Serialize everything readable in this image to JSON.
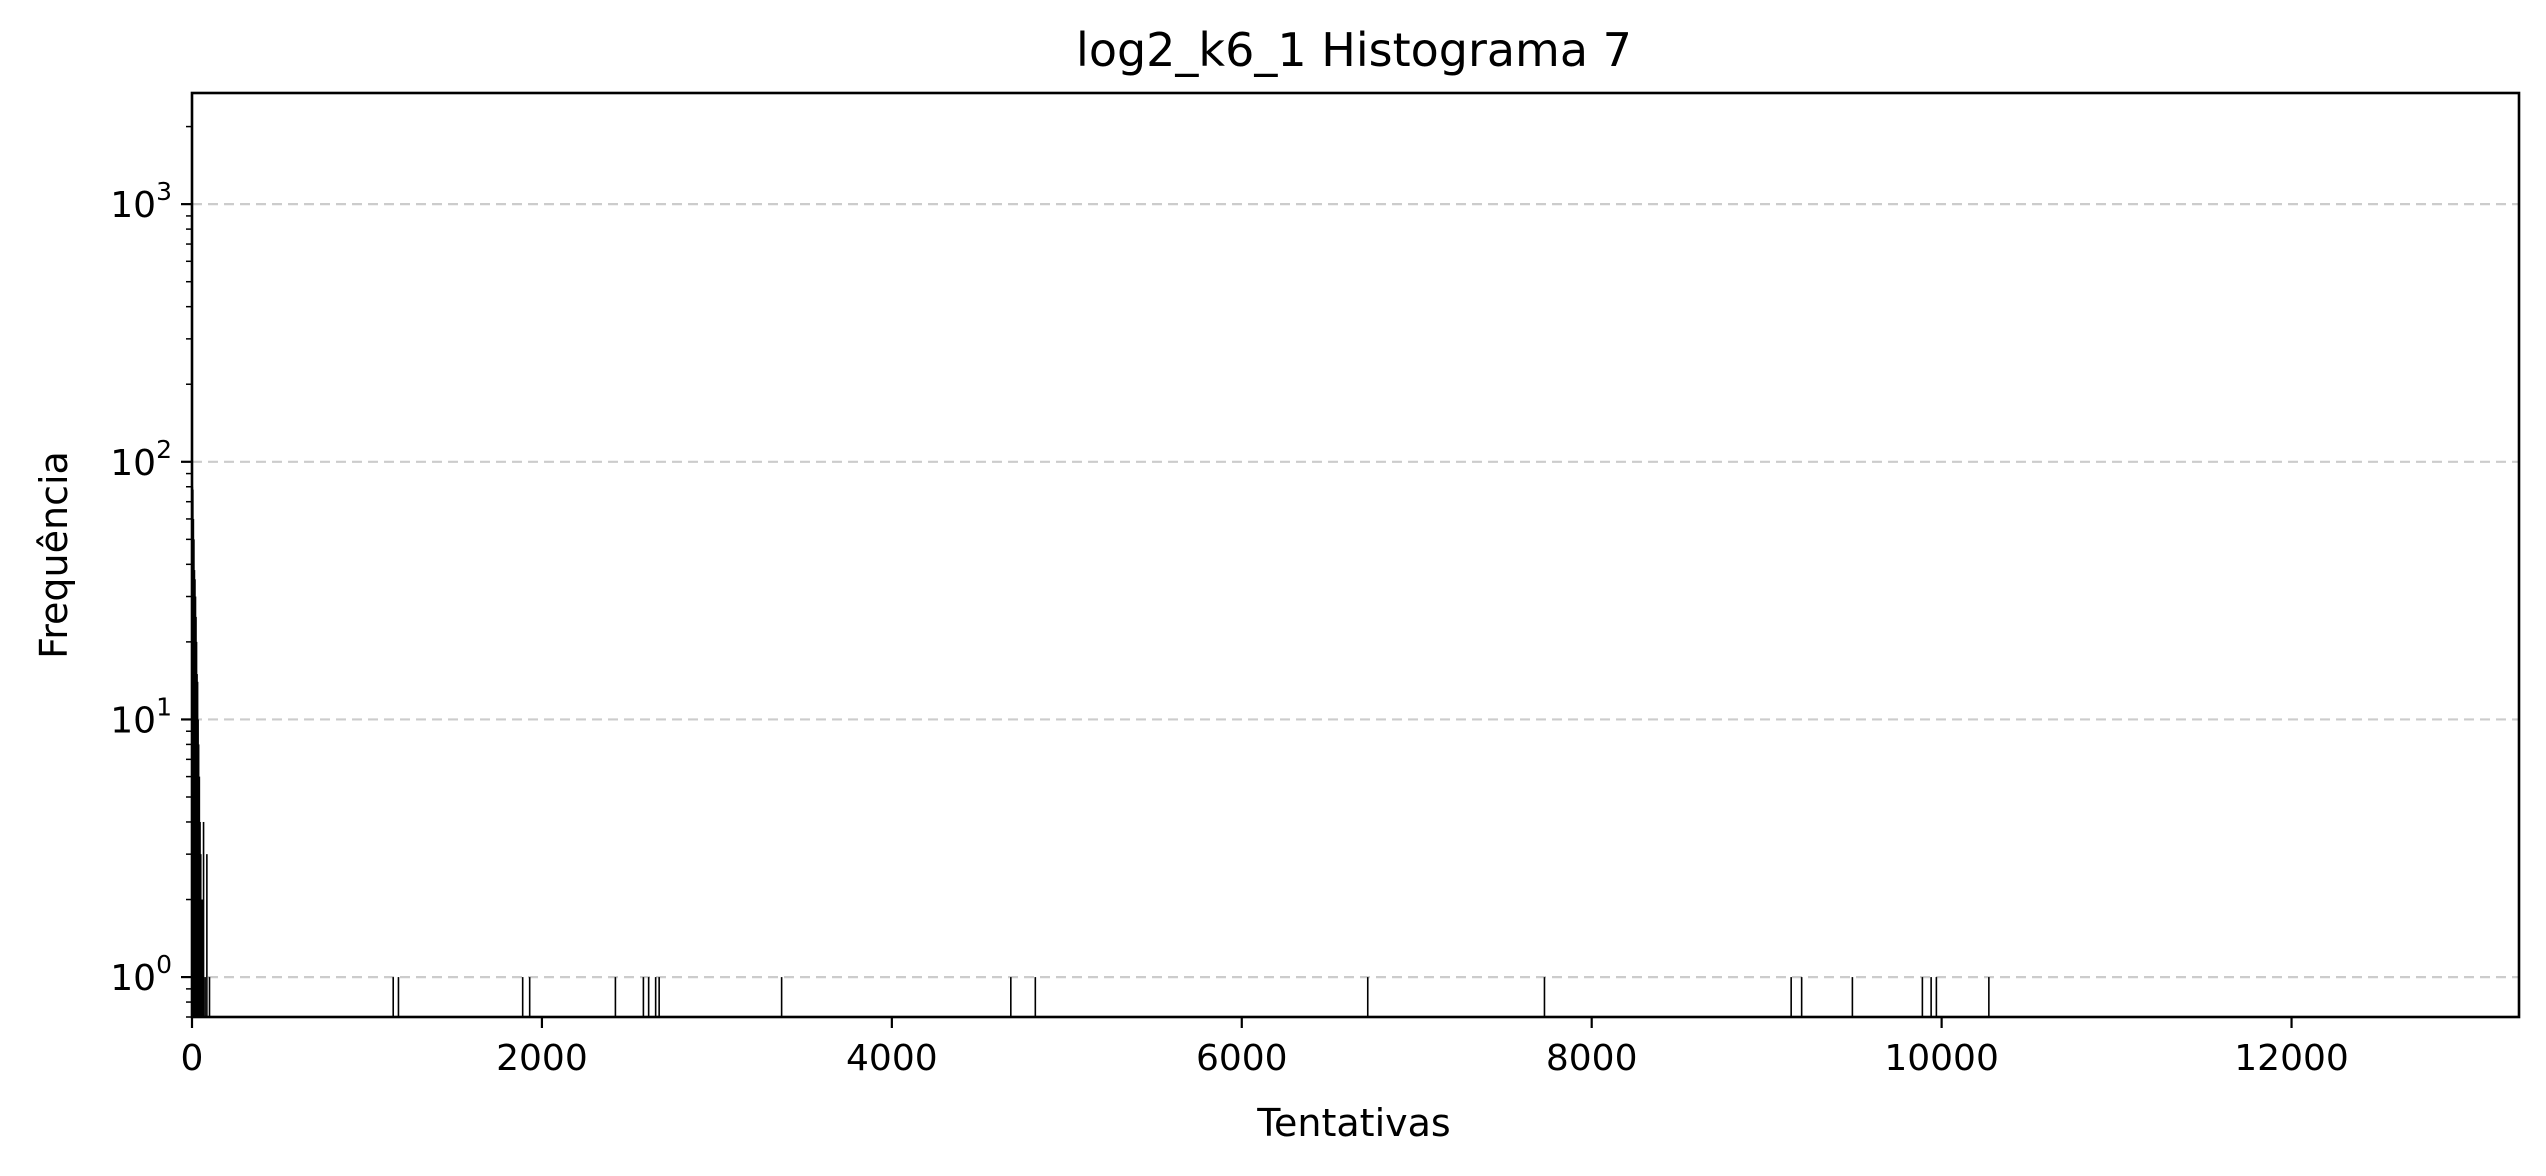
{
  "chart_data": {
    "type": "bar",
    "title": "log2_k6_1 Histograma 7",
    "xlabel": "Tentativas",
    "ylabel": "Frequência",
    "xlim": [
      0,
      13300
    ],
    "ylim": [
      0.7,
      2700
    ],
    "yscale": "log",
    "grid": "y-dashed",
    "colors": {
      "bar": "#000000",
      "grid": "#cccccc"
    },
    "x_ticks": [
      {
        "value": 0,
        "label": "0"
      },
      {
        "value": 2000,
        "label": "2000"
      },
      {
        "value": 4000,
        "label": "4000"
      },
      {
        "value": 6000,
        "label": "6000"
      },
      {
        "value": 8000,
        "label": "8000"
      },
      {
        "value": 10000,
        "label": "10000"
      },
      {
        "value": 12000,
        "label": "12000"
      }
    ],
    "y_ticks": [
      {
        "value": 1,
        "base": "10",
        "exp": "0"
      },
      {
        "value": 10,
        "base": "10",
        "exp": "1"
      },
      {
        "value": 100,
        "base": "10",
        "exp": "2"
      },
      {
        "value": 1000,
        "base": "10",
        "exp": "3"
      }
    ],
    "bins": [
      {
        "x": 2,
        "y": 80
      },
      {
        "x": 5,
        "y": 78
      },
      {
        "x": 8,
        "y": 60
      },
      {
        "x": 11,
        "y": 50
      },
      {
        "x": 14,
        "y": 38
      },
      {
        "x": 17,
        "y": 35
      },
      {
        "x": 20,
        "y": 30
      },
      {
        "x": 23,
        "y": 25
      },
      {
        "x": 26,
        "y": 20
      },
      {
        "x": 29,
        "y": 15
      },
      {
        "x": 32,
        "y": 14
      },
      {
        "x": 35,
        "y": 10
      },
      {
        "x": 38,
        "y": 8
      },
      {
        "x": 42,
        "y": 6
      },
      {
        "x": 46,
        "y": 4
      },
      {
        "x": 50,
        "y": 3
      },
      {
        "x": 55,
        "y": 2
      },
      {
        "x": 60,
        "y": 2
      },
      {
        "x": 66,
        "y": 4
      },
      {
        "x": 75,
        "y": 1
      },
      {
        "x": 85,
        "y": 3
      },
      {
        "x": 100,
        "y": 1
      },
      {
        "x": 1150,
        "y": 1
      },
      {
        "x": 1180,
        "y": 1
      },
      {
        "x": 1890,
        "y": 1
      },
      {
        "x": 1930,
        "y": 1
      },
      {
        "x": 2420,
        "y": 1
      },
      {
        "x": 2580,
        "y": 1
      },
      {
        "x": 2610,
        "y": 1
      },
      {
        "x": 2650,
        "y": 1
      },
      {
        "x": 2670,
        "y": 1
      },
      {
        "x": 3370,
        "y": 1
      },
      {
        "x": 4680,
        "y": 1
      },
      {
        "x": 4820,
        "y": 1
      },
      {
        "x": 6720,
        "y": 1
      },
      {
        "x": 7730,
        "y": 1
      },
      {
        "x": 9140,
        "y": 1
      },
      {
        "x": 9200,
        "y": 1
      },
      {
        "x": 9490,
        "y": 1
      },
      {
        "x": 9890,
        "y": 1
      },
      {
        "x": 9940,
        "y": 1
      },
      {
        "x": 9970,
        "y": 1
      },
      {
        "x": 10270,
        "y": 1
      }
    ]
  }
}
